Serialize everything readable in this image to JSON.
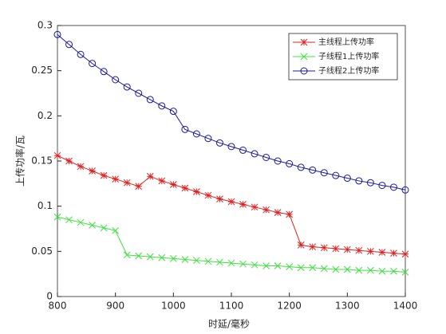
{
  "chart_data": {
    "type": "line",
    "xlabel": "时延/毫秒",
    "ylabel": "上传功率/瓦",
    "x": [
      800,
      820,
      840,
      860,
      880,
      900,
      920,
      940,
      960,
      980,
      1000,
      1020,
      1040,
      1060,
      1080,
      1100,
      1120,
      1140,
      1160,
      1180,
      1200,
      1220,
      1240,
      1260,
      1280,
      1300,
      1320,
      1340,
      1360,
      1380,
      1400
    ],
    "series": [
      {
        "name": "主线程上传功率",
        "color": "#e02020",
        "marker": "star",
        "values": [
          0.156,
          0.15,
          0.144,
          0.139,
          0.134,
          0.13,
          0.126,
          0.122,
          0.133,
          0.128,
          0.124,
          0.12,
          0.116,
          0.112,
          0.108,
          0.105,
          0.102,
          0.099,
          0.096,
          0.093,
          0.091,
          0.057,
          0.055,
          0.054,
          0.053,
          0.052,
          0.051,
          0.05,
          0.049,
          0.048,
          0.047
        ]
      },
      {
        "name": "子线程1上传功率",
        "color": "#40e040",
        "marker": "x",
        "values": [
          0.088,
          0.085,
          0.082,
          0.079,
          0.076,
          0.073,
          0.046,
          0.045,
          0.044,
          0.043,
          0.042,
          0.041,
          0.04,
          0.039,
          0.038,
          0.037,
          0.036,
          0.035,
          0.034,
          0.034,
          0.033,
          0.032,
          0.032,
          0.031,
          0.03,
          0.03,
          0.029,
          0.029,
          0.028,
          0.028,
          0.027
        ]
      },
      {
        "name": "子线程2上传功率",
        "color": "#1a1aa0",
        "marker": "circle",
        "values": [
          0.29,
          0.279,
          0.268,
          0.258,
          0.249,
          0.24,
          0.232,
          0.225,
          0.218,
          0.211,
          0.205,
          0.185,
          0.18,
          0.175,
          0.17,
          0.166,
          0.162,
          0.158,
          0.154,
          0.15,
          0.147,
          0.143,
          0.14,
          0.137,
          0.134,
          0.131,
          0.128,
          0.126,
          0.123,
          0.121,
          0.118
        ]
      }
    ],
    "xlim": [
      800,
      1400
    ],
    "xticks": [
      800,
      900,
      1000,
      1100,
      1200,
      1300,
      1400
    ],
    "ylim": [
      0,
      0.3
    ],
    "yticks": [
      0,
      0.05,
      0.1,
      0.15,
      0.2,
      0.25,
      0.3
    ],
    "grid": false,
    "legend": "northeast"
  }
}
